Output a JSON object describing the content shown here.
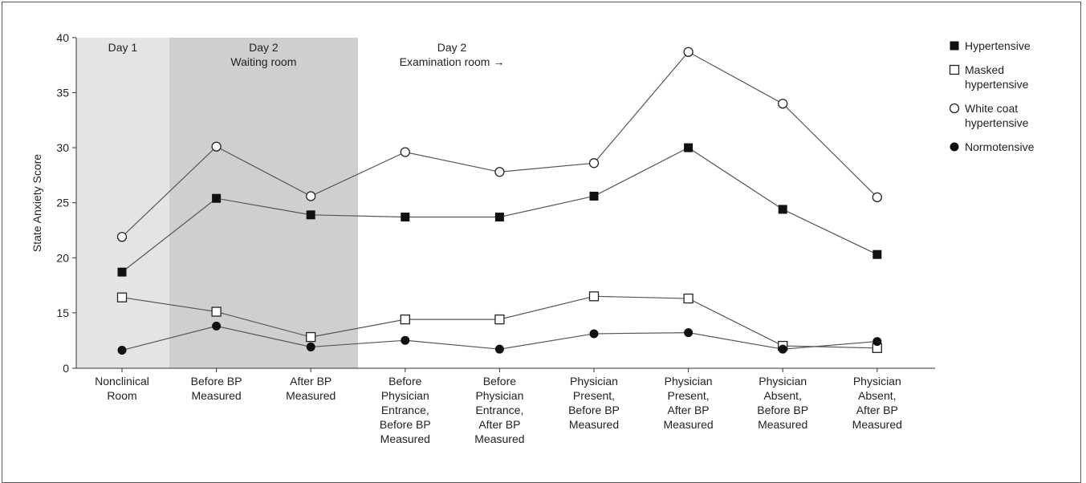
{
  "chart_data": {
    "type": "line",
    "ylabel": "State Anxiety Score",
    "xlabel": "",
    "ylim": [
      0,
      40
    ],
    "yticks": [
      0,
      15,
      20,
      25,
      30,
      35,
      40
    ],
    "grid": false,
    "legend_position": "top-right",
    "categories": [
      [
        "Nonclinical",
        "Room"
      ],
      [
        "Before BP",
        "Measured"
      ],
      [
        "After BP",
        "Measured"
      ],
      [
        "Before",
        "Physician",
        "Entrance,",
        "Before BP",
        "Measured"
      ],
      [
        "Before",
        "Physician",
        "Entrance,",
        "After BP",
        "Measured"
      ],
      [
        "Physician",
        "Present,",
        "Before BP",
        "Measured"
      ],
      [
        "Physician",
        "Present,",
        "After BP",
        "Measured"
      ],
      [
        "Physician",
        "Absent,",
        "Before BP",
        "Measured"
      ],
      [
        "Physician",
        "Absent,",
        "After BP",
        "Measured"
      ]
    ],
    "regions": [
      {
        "lines": [
          "Day 1"
        ],
        "from": 0,
        "to": 0,
        "color": "#e4e4e5"
      },
      {
        "lines": [
          "Day 2",
          "Waiting room"
        ],
        "from": 1,
        "to": 2,
        "color": "#cfcfd0"
      },
      {
        "lines": [
          "Day 2",
          "Examination room →"
        ],
        "from": 3,
        "to": 8,
        "color": "#ffffff"
      }
    ],
    "series": [
      {
        "name": "Hypertensive",
        "marker": "filled-square",
        "values": [
          18.7,
          25.4,
          23.9,
          23.7,
          23.7,
          25.6,
          30.0,
          24.4,
          20.3
        ]
      },
      {
        "name": "Masked hypertensive",
        "marker": "open-square",
        "values": [
          16.4,
          15.1,
          12.8,
          14.4,
          14.4,
          16.5,
          16.3,
          12.0,
          11.8
        ]
      },
      {
        "name": "White coat hypertensive",
        "marker": "open-circle",
        "values": [
          21.9,
          30.1,
          25.6,
          29.6,
          27.8,
          28.6,
          38.7,
          34.0,
          25.5
        ]
      },
      {
        "name": "Normotensive",
        "marker": "filled-circle",
        "values": [
          11.6,
          13.8,
          11.9,
          12.5,
          11.7,
          13.1,
          13.2,
          11.7,
          12.4
        ]
      }
    ],
    "legend": [
      {
        "marker": "filled-square",
        "lines": [
          "Hypertensive"
        ]
      },
      {
        "marker": "open-square",
        "lines": [
          "Masked",
          "hypertensive"
        ]
      },
      {
        "marker": "open-circle",
        "lines": [
          "White coat",
          "hypertensive"
        ]
      },
      {
        "marker": "filled-circle",
        "lines": [
          "Normotensive"
        ]
      }
    ]
  }
}
